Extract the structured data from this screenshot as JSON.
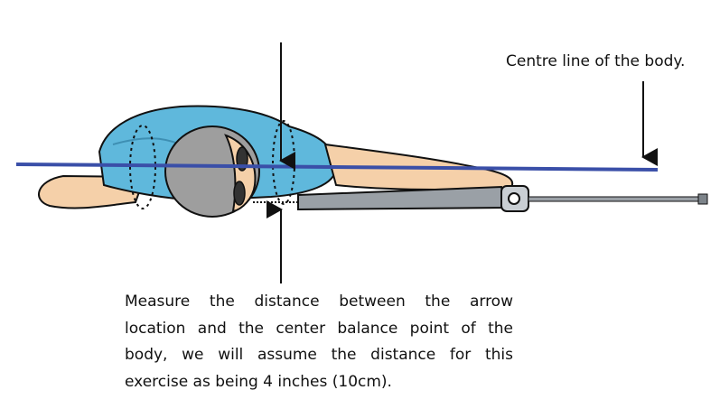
{
  "diagram": {
    "centre_line_label": "Centre line of the body.",
    "caption_lines": [
      "Measure the distance between the arrow",
      "location and the center balance point of the",
      "body, we will assume the distance for this",
      "exercise as being 4 inches (10cm)."
    ],
    "colors": {
      "shirt": "#5fb8dc",
      "skin": "#f5d0a9",
      "head": "#9e9e9e",
      "centre_line": "#3a4fa8",
      "bow": "#9aa0a6",
      "outline": "#111111"
    }
  }
}
